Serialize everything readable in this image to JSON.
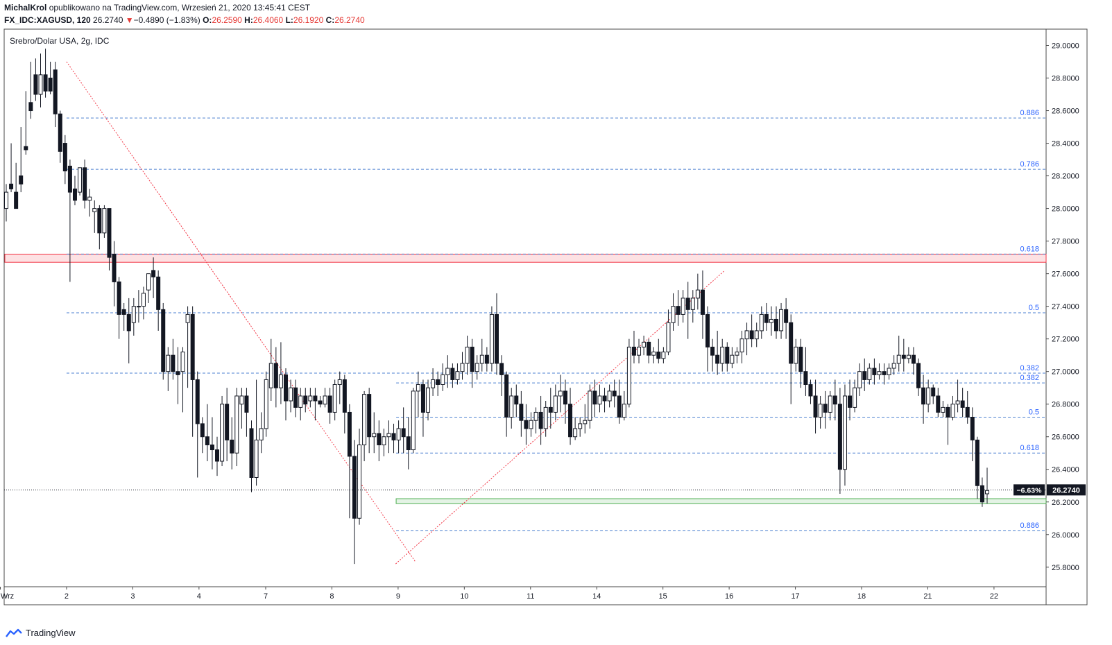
{
  "header": {
    "author": "MichalKrol",
    "published_text": "opublikowano na TradingView.com, Wrzesień 21, 2020 13:45:41 CEST",
    "symbol": "FX_IDC:XAGUSD, 120",
    "last": "26.2740",
    "change_arrow": "▼",
    "change": "−0.4890 (−1.83%)",
    "o_label": "O:",
    "o_value": "26.2590",
    "h_label": "H:",
    "h_value": "26.4060",
    "l_label": "L:",
    "l_value": "26.1920",
    "c_label": "C:",
    "c_value": "26.2740"
  },
  "footer": {
    "brand": "TradingView"
  },
  "chart_data": {
    "type": "candlestick",
    "title": "Srebro/Dolar USA, 2g, IDC",
    "ylim": [
      25.68,
      29.1
    ],
    "y_ticks": [
      "29.0000",
      "28.8000",
      "28.6000",
      "28.4000",
      "28.2000",
      "28.0000",
      "27.8000",
      "27.6000",
      "27.4000",
      "27.2000",
      "27.0000",
      "26.8000",
      "26.6000",
      "26.4000",
      "26.2000",
      "26.0000",
      "25.8000"
    ],
    "x_labels": [
      {
        "label": "Wrz",
        "i": -1.2
      },
      {
        "label": "2",
        "i": 12.3
      },
      {
        "label": "3",
        "i": 25.8
      },
      {
        "label": "4",
        "i": 39.3
      },
      {
        "label": "7",
        "i": 52.9
      },
      {
        "label": "8",
        "i": 66.4
      },
      {
        "label": "9",
        "i": 79.9
      },
      {
        "label": "10",
        "i": 93.4
      },
      {
        "label": "11",
        "i": 106.9
      },
      {
        "label": "14",
        "i": 120.4
      },
      {
        "label": "15",
        "i": 133.9
      },
      {
        "label": "16",
        "i": 147.4
      },
      {
        "label": "17",
        "i": 160.9
      },
      {
        "label": "18",
        "i": 174.4
      },
      {
        "label": "21",
        "i": 187.9
      },
      {
        "label": "22",
        "i": 201.4
      }
    ],
    "last_price": {
      "value": 26.274,
      "label": "26.2740",
      "change_label": "−6.63%"
    },
    "fib_levels_1": [
      {
        "label": "0.886",
        "value": 28.555
      },
      {
        "label": "0.786",
        "value": 28.24
      },
      {
        "label": "0.618",
        "value": 27.72
      },
      {
        "label": "0.5",
        "value": 27.36
      },
      {
        "label": "0.382",
        "value": 26.99
      }
    ],
    "fib_levels_2": [
      {
        "label": "0.382",
        "value": 26.93
      },
      {
        "label": "0.5",
        "value": 26.72
      },
      {
        "label": "0.618",
        "value": 26.5
      },
      {
        "label": "0.886",
        "value": 26.025
      }
    ],
    "resistance_zone": {
      "from": 27.67,
      "to": 27.72,
      "color": "#f23645"
    },
    "support_zone": {
      "from": 26.19,
      "to": 26.22,
      "color": "#4caf50"
    },
    "trend_lines": [
      {
        "from": [
          12.3,
          28.9
        ],
        "to": [
          83.5,
          25.83
        ]
      },
      {
        "from": [
          79.4,
          25.82
        ],
        "to": [
          146.5,
          27.62
        ]
      }
    ],
    "candles": [
      [
        28.0,
        28.15,
        28.1,
        27.92
      ],
      [
        28.15,
        28.4,
        28.12,
        28.1
      ],
      [
        28.1,
        28.28,
        28.0,
        28.03
      ],
      [
        28.2,
        28.5,
        28.15,
        28.1
      ],
      [
        28.38,
        28.72,
        28.36,
        28.33
      ],
      [
        28.65,
        28.9,
        28.6,
        28.55
      ],
      [
        28.82,
        28.92,
        28.7,
        28.66
      ],
      [
        28.7,
        28.95,
        28.82,
        28.62
      ],
      [
        28.82,
        28.98,
        28.72,
        28.68
      ],
      [
        28.8,
        28.9,
        28.72,
        28.7
      ],
      [
        28.85,
        28.9,
        28.58,
        28.5
      ],
      [
        28.58,
        28.6,
        28.35,
        28.28
      ],
      [
        28.4,
        28.45,
        28.23,
        28.15
      ],
      [
        28.26,
        28.3,
        28.1,
        27.55
      ],
      [
        28.12,
        28.2,
        28.05,
        28.02
      ],
      [
        28.1,
        28.25,
        28.25,
        28.08
      ],
      [
        28.25,
        28.3,
        28.05,
        28.0
      ],
      [
        28.05,
        28.12,
        28.07,
        27.95
      ],
      [
        27.98,
        28.05,
        28.0,
        27.85
      ],
      [
        28.0,
        28.02,
        27.85,
        27.75
      ],
      [
        27.85,
        28.02,
        28.0,
        27.82
      ],
      [
        28.0,
        28.0,
        27.7,
        27.62
      ],
      [
        27.72,
        27.8,
        27.55,
        27.4
      ],
      [
        27.55,
        27.58,
        27.35,
        27.2
      ],
      [
        27.38,
        27.42,
        27.35,
        27.25
      ],
      [
        27.35,
        27.45,
        27.25,
        27.05
      ],
      [
        27.3,
        27.45,
        27.4,
        27.22
      ],
      [
        27.4,
        27.5,
        27.4,
        27.3
      ],
      [
        27.4,
        27.52,
        27.48,
        27.32
      ],
      [
        27.5,
        27.6,
        27.6,
        27.42
      ],
      [
        27.62,
        27.7,
        27.58,
        27.45
      ],
      [
        27.58,
        27.62,
        27.38,
        27.25
      ],
      [
        27.38,
        27.42,
        27.0,
        26.95
      ],
      [
        27.0,
        27.15,
        27.1,
        26.88
      ],
      [
        27.1,
        27.2,
        27.0,
        26.95
      ],
      [
        27.0,
        27.15,
        26.98,
        26.8
      ],
      [
        27.0,
        27.15,
        27.12,
        26.75
      ],
      [
        27.3,
        27.4,
        27.35,
        26.9
      ],
      [
        27.35,
        27.4,
        26.95,
        26.6
      ],
      [
        26.95,
        27.0,
        26.68,
        26.35
      ],
      [
        26.68,
        26.72,
        26.6,
        26.5
      ],
      [
        26.6,
        26.8,
        26.55,
        26.45
      ],
      [
        26.55,
        26.72,
        26.52,
        26.4
      ],
      [
        26.52,
        26.6,
        26.45,
        26.36
      ],
      [
        26.45,
        26.85,
        26.8,
        26.42
      ],
      [
        26.8,
        26.9,
        26.58,
        26.45
      ],
      [
        26.58,
        26.72,
        26.5,
        26.4
      ],
      [
        26.5,
        26.9,
        26.85,
        26.42
      ],
      [
        26.8,
        26.9,
        26.85,
        26.65
      ],
      [
        26.85,
        26.9,
        26.75,
        26.6
      ],
      [
        26.65,
        26.7,
        26.35,
        26.26
      ],
      [
        26.35,
        26.95,
        26.58,
        26.3
      ],
      [
        26.58,
        26.75,
        26.65,
        26.5
      ],
      [
        26.65,
        27.0,
        26.95,
        26.6
      ],
      [
        26.9,
        27.2,
        27.05,
        26.82
      ],
      [
        27.05,
        27.15,
        26.9,
        26.78
      ],
      [
        26.9,
        27.18,
        26.98,
        26.8
      ],
      [
        26.98,
        27.02,
        26.82,
        26.7
      ],
      [
        26.82,
        26.95,
        26.9,
        26.75
      ],
      [
        26.9,
        26.95,
        26.78,
        26.72
      ],
      [
        26.78,
        26.9,
        26.85,
        26.7
      ],
      [
        26.85,
        26.9,
        26.8,
        26.75
      ],
      [
        26.82,
        26.9,
        26.85,
        26.78
      ],
      [
        26.85,
        26.9,
        26.82,
        26.7
      ],
      [
        26.82,
        26.85,
        26.8,
        26.78
      ],
      [
        26.8,
        26.9,
        26.85,
        26.78
      ],
      [
        26.85,
        26.9,
        26.75,
        26.68
      ],
      [
        26.75,
        26.95,
        26.92,
        26.7
      ],
      [
        26.92,
        27.0,
        26.95,
        26.8
      ],
      [
        26.95,
        26.98,
        26.75,
        26.62
      ],
      [
        26.75,
        26.8,
        26.48,
        26.1
      ],
      [
        26.48,
        26.58,
        26.1,
        25.82
      ],
      [
        26.1,
        26.65,
        26.55,
        26.06
      ],
      [
        26.55,
        26.88,
        26.86,
        26.45
      ],
      [
        26.86,
        26.9,
        26.6,
        26.5
      ],
      [
        26.6,
        26.75,
        26.62,
        26.5
      ],
      [
        26.62,
        26.7,
        26.55,
        26.45
      ],
      [
        26.55,
        26.65,
        26.6,
        26.48
      ],
      [
        26.6,
        26.7,
        26.62,
        26.5
      ],
      [
        26.62,
        26.68,
        26.58,
        26.5
      ],
      [
        26.58,
        26.7,
        26.65,
        26.5
      ],
      [
        26.65,
        26.78,
        26.6,
        26.5
      ],
      [
        26.6,
        26.72,
        26.52,
        26.4
      ],
      [
        26.52,
        26.9,
        26.88,
        26.5
      ],
      [
        26.88,
        27.0,
        26.92,
        26.72
      ],
      [
        26.92,
        26.95,
        26.75,
        26.6
      ],
      [
        26.75,
        26.95,
        26.9,
        26.7
      ],
      [
        26.9,
        27.02,
        26.95,
        26.85
      ],
      [
        26.95,
        27.0,
        26.92,
        26.85
      ],
      [
        26.92,
        27.05,
        26.98,
        26.88
      ],
      [
        26.98,
        27.1,
        27.02,
        26.9
      ],
      [
        27.02,
        27.05,
        26.95,
        26.9
      ],
      [
        26.95,
        27.05,
        27.0,
        26.92
      ],
      [
        27.0,
        27.12,
        27.05,
        26.95
      ],
      [
        27.05,
        27.22,
        27.15,
        26.98
      ],
      [
        27.15,
        27.2,
        27.0,
        26.9
      ],
      [
        27.0,
        27.1,
        27.05,
        26.95
      ],
      [
        27.05,
        27.2,
        27.1,
        27.0
      ],
      [
        27.1,
        27.15,
        27.05,
        27.0
      ],
      [
        27.05,
        27.4,
        27.35,
        27.0
      ],
      [
        27.35,
        27.48,
        27.05,
        26.98
      ],
      [
        27.05,
        27.1,
        26.98,
        26.85
      ],
      [
        26.98,
        27.0,
        26.72,
        26.6
      ],
      [
        26.72,
        26.9,
        26.85,
        26.65
      ],
      [
        26.85,
        26.92,
        26.8,
        26.72
      ],
      [
        26.8,
        26.88,
        26.7,
        26.6
      ],
      [
        26.7,
        26.8,
        26.65,
        26.55
      ],
      [
        26.65,
        26.75,
        26.7,
        26.6
      ],
      [
        26.7,
        26.78,
        26.75,
        26.62
      ],
      [
        26.75,
        26.85,
        26.65,
        26.55
      ],
      [
        26.65,
        26.82,
        26.78,
        26.6
      ],
      [
        26.78,
        26.9,
        26.75,
        26.65
      ],
      [
        26.75,
        26.92,
        26.85,
        26.7
      ],
      [
        26.85,
        26.98,
        26.88,
        26.75
      ],
      [
        26.88,
        26.95,
        26.8,
        26.68
      ],
      [
        26.8,
        26.9,
        26.6,
        26.55
      ],
      [
        26.6,
        26.72,
        26.65,
        26.58
      ],
      [
        26.65,
        26.72,
        26.68,
        26.6
      ],
      [
        26.68,
        26.8,
        26.7,
        26.62
      ],
      [
        26.7,
        26.92,
        26.88,
        26.65
      ],
      [
        26.88,
        26.95,
        26.8,
        26.72
      ],
      [
        26.8,
        26.92,
        26.85,
        26.75
      ],
      [
        26.85,
        26.9,
        26.82,
        26.75
      ],
      [
        26.82,
        26.92,
        26.88,
        26.78
      ],
      [
        26.88,
        26.95,
        26.85,
        26.78
      ],
      [
        26.85,
        26.95,
        26.72,
        26.68
      ],
      [
        26.72,
        26.88,
        26.8,
        26.7
      ],
      [
        26.8,
        27.2,
        27.15,
        26.78
      ],
      [
        27.15,
        27.25,
        27.1,
        27.05
      ],
      [
        27.1,
        27.2,
        27.15,
        27.05
      ],
      [
        27.15,
        27.22,
        27.18,
        27.1
      ],
      [
        27.18,
        27.2,
        27.1,
        27.05
      ],
      [
        27.1,
        27.15,
        27.12,
        27.05
      ],
      [
        27.12,
        27.2,
        27.08,
        27.05
      ],
      [
        27.08,
        27.15,
        27.12,
        27.05
      ],
      [
        27.12,
        27.38,
        27.3,
        27.1
      ],
      [
        27.3,
        27.48,
        27.4,
        27.25
      ],
      [
        27.4,
        27.5,
        27.35,
        27.28
      ],
      [
        27.35,
        27.5,
        27.45,
        27.3
      ],
      [
        27.45,
        27.55,
        27.38,
        27.2
      ],
      [
        27.38,
        27.5,
        27.45,
        27.3
      ],
      [
        27.45,
        27.6,
        27.5,
        27.38
      ],
      [
        27.5,
        27.62,
        27.35,
        27.2
      ],
      [
        27.35,
        27.4,
        27.15,
        27.0
      ],
      [
        27.15,
        27.2,
        27.1,
        27.0
      ],
      [
        27.1,
        27.25,
        27.05,
        26.98
      ],
      [
        27.05,
        27.2,
        27.15,
        27.0
      ],
      [
        27.15,
        27.18,
        27.05,
        27.0
      ],
      [
        27.05,
        27.15,
        27.1,
        27.02
      ],
      [
        27.1,
        27.15,
        27.12,
        27.05
      ],
      [
        27.12,
        27.25,
        27.2,
        27.05
      ],
      [
        27.2,
        27.3,
        27.25,
        27.1
      ],
      [
        27.25,
        27.35,
        27.2,
        27.15
      ],
      [
        27.2,
        27.3,
        27.25,
        27.15
      ],
      [
        27.25,
        27.4,
        27.35,
        27.2
      ],
      [
        27.35,
        27.42,
        27.3,
        27.25
      ],
      [
        27.3,
        27.4,
        27.32,
        27.22
      ],
      [
        27.32,
        27.4,
        27.25,
        27.2
      ],
      [
        27.25,
        27.42,
        27.38,
        27.2
      ],
      [
        27.38,
        27.45,
        27.3,
        27.2
      ],
      [
        27.3,
        27.35,
        27.05,
        26.8
      ],
      [
        27.05,
        27.2,
        27.15,
        27.0
      ],
      [
        27.15,
        27.2,
        27.0,
        26.9
      ],
      [
        27.0,
        27.15,
        26.92,
        26.85
      ],
      [
        26.92,
        26.95,
        26.85,
        26.8
      ],
      [
        26.85,
        26.95,
        26.72,
        26.62
      ],
      [
        26.72,
        26.85,
        26.8,
        26.65
      ],
      [
        26.8,
        26.88,
        26.75,
        26.65
      ],
      [
        26.75,
        26.88,
        26.85,
        26.7
      ],
      [
        26.85,
        26.95,
        26.8,
        26.7
      ],
      [
        26.8,
        26.9,
        26.4,
        26.25
      ],
      [
        26.4,
        26.92,
        26.85,
        26.3
      ],
      [
        26.85,
        26.95,
        26.78,
        26.7
      ],
      [
        26.78,
        26.95,
        26.9,
        26.75
      ],
      [
        26.9,
        27.05,
        27.0,
        26.85
      ],
      [
        27.0,
        27.08,
        26.95,
        26.88
      ],
      [
        26.95,
        27.05,
        27.02,
        26.92
      ],
      [
        27.02,
        27.08,
        26.98,
        26.92
      ],
      [
        26.98,
        27.05,
        27.0,
        26.95
      ],
      [
        27.0,
        27.05,
        26.98,
        26.92
      ],
      [
        26.98,
        27.05,
        27.02,
        26.95
      ],
      [
        27.02,
        27.1,
        27.05,
        26.98
      ],
      [
        27.05,
        27.22,
        27.1,
        27.0
      ],
      [
        27.1,
        27.2,
        27.08,
        27.0
      ],
      [
        27.08,
        27.15,
        27.1,
        27.05
      ],
      [
        27.1,
        27.15,
        27.05,
        26.98
      ],
      [
        27.05,
        27.08,
        26.9,
        26.85
      ],
      [
        26.9,
        26.98,
        26.8,
        26.68
      ],
      [
        26.8,
        26.95,
        26.9,
        26.75
      ],
      [
        26.9,
        26.92,
        26.85,
        26.8
      ],
      [
        26.85,
        26.9,
        26.75,
        26.72
      ],
      [
        26.75,
        26.82,
        26.78,
        26.72
      ],
      [
        26.78,
        26.8,
        26.72,
        26.55
      ],
      [
        26.72,
        26.85,
        26.8,
        26.7
      ],
      [
        26.8,
        26.95,
        26.82,
        26.75
      ],
      [
        26.82,
        26.9,
        26.78,
        26.72
      ],
      [
        26.78,
        26.88,
        26.72,
        26.68
      ],
      [
        26.72,
        26.78,
        26.58,
        26.45
      ],
      [
        26.58,
        26.6,
        26.3,
        26.22
      ],
      [
        26.3,
        26.35,
        26.2,
        26.17
      ],
      [
        26.25,
        26.41,
        26.27,
        26.19
      ]
    ]
  }
}
